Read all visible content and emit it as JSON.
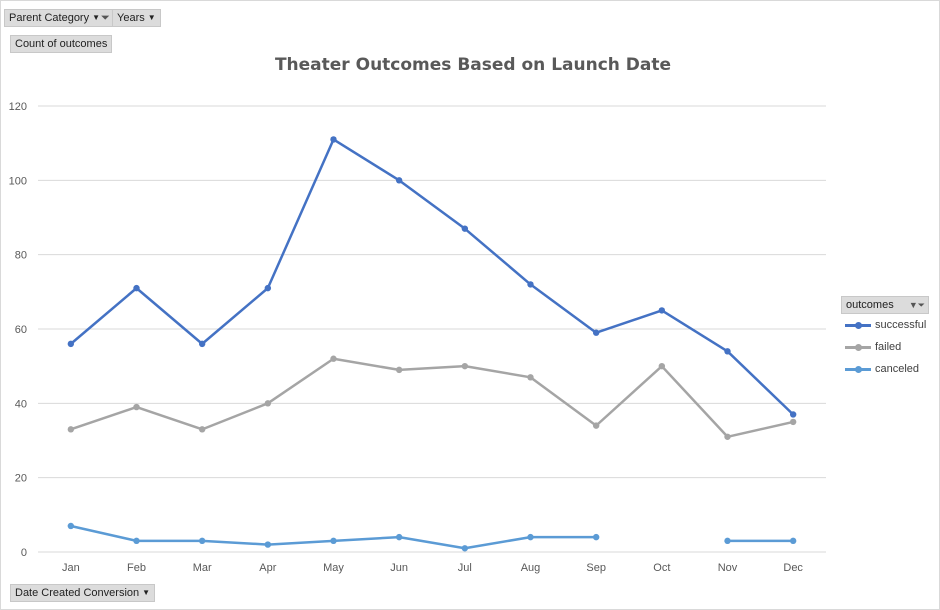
{
  "pivot_fields": {
    "parent_category": "Parent Category",
    "years": "Years",
    "values_field": "Count of outcomes",
    "axis_field": "Date Created Conversion",
    "legend_field": "outcomes"
  },
  "chart_data": {
    "type": "line",
    "title": "Theater Outcomes Based on Launch Date",
    "xlabel": "",
    "ylabel": "",
    "categories": [
      "Jan",
      "Feb",
      "Mar",
      "Apr",
      "May",
      "Jun",
      "Jul",
      "Aug",
      "Sep",
      "Oct",
      "Nov",
      "Dec"
    ],
    "ylim": [
      0,
      120
    ],
    "yticks": [
      0,
      20,
      40,
      60,
      80,
      100,
      120
    ],
    "grid": true,
    "legend_position": "right",
    "series": [
      {
        "name": "successful",
        "color": "#4472c4",
        "values": [
          56,
          71,
          56,
          71,
          111,
          100,
          87,
          72,
          59,
          65,
          54,
          37
        ]
      },
      {
        "name": "failed",
        "color": "#a5a5a5",
        "values": [
          33,
          39,
          33,
          40,
          52,
          49,
          50,
          47,
          34,
          50,
          31,
          35
        ]
      },
      {
        "name": "canceled",
        "color": "#5b9bd5",
        "values": [
          7,
          3,
          3,
          2,
          3,
          4,
          1,
          4,
          4,
          null,
          3,
          3
        ]
      }
    ]
  }
}
